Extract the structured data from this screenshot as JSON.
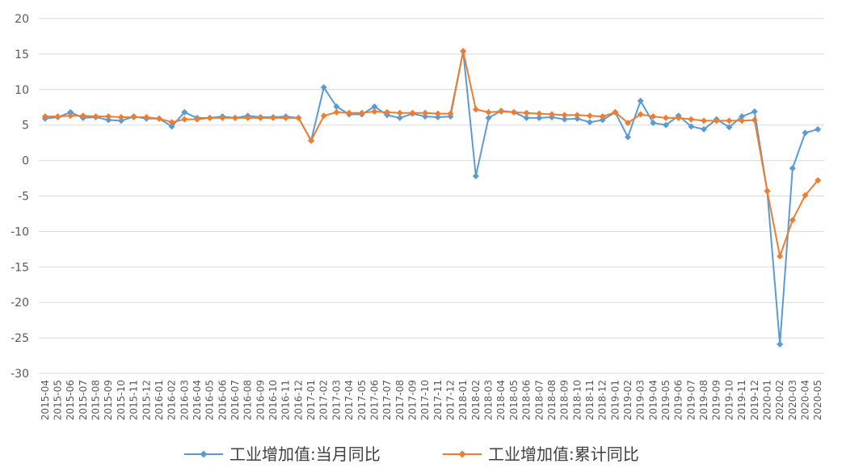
{
  "chart_data": {
    "type": "line",
    "title": "",
    "xlabel": "",
    "ylabel": "",
    "ylim": [
      -30,
      20
    ],
    "yticks": [
      20,
      15,
      10,
      5,
      0,
      -5,
      -10,
      -15,
      -20,
      -25,
      -30
    ],
    "grid": true,
    "legend_position": "bottom",
    "categories": [
      "2015-04",
      "2015-05",
      "2015-06",
      "2015-07",
      "2015-08",
      "2015-09",
      "2015-10",
      "2015-11",
      "2015-12",
      "2016-01",
      "2016-02",
      "2016-03",
      "2016-04",
      "2016-05",
      "2016-06",
      "2016-07",
      "2016-08",
      "2016-09",
      "2016-10",
      "2016-11",
      "2016-12",
      "2017-01",
      "2017-02",
      "2017-03",
      "2017-04",
      "2017-05",
      "2017-06",
      "2017-07",
      "2017-08",
      "2017-09",
      "2017-10",
      "2017-11",
      "2017-12",
      "2018-01",
      "2018-02",
      "2018-03",
      "2018-04",
      "2018-05",
      "2018-06",
      "2018-07",
      "2018-08",
      "2018-09",
      "2018-10",
      "2018-11",
      "2018-12",
      "2019-01",
      "2019-02",
      "2019-03",
      "2019-04",
      "2019-05",
      "2019-06",
      "2019-07",
      "2019-08",
      "2019-09",
      "2019-10",
      "2019-11",
      "2019-12",
      "2020-01",
      "2020-02",
      "2020-03",
      "2020-04",
      "2020-05"
    ],
    "series": [
      {
        "name": "工业增加值:当月同比",
        "color": "#5B9BD5",
        "marker": "diamond",
        "values": [
          5.9,
          6.1,
          6.8,
          6.0,
          6.1,
          5.7,
          5.6,
          6.2,
          5.9,
          5.9,
          4.8,
          6.8,
          6.0,
          6.0,
          6.2,
          6.0,
          6.3,
          6.1,
          6.1,
          6.2,
          6.0,
          2.8,
          10.3,
          7.6,
          6.5,
          6.5,
          7.6,
          6.4,
          6.0,
          6.6,
          6.2,
          6.1,
          6.2,
          15.4,
          -2.2,
          6.0,
          7.0,
          6.8,
          6.0,
          6.0,
          6.1,
          5.8,
          5.9,
          5.4,
          5.7,
          6.8,
          3.3,
          8.4,
          5.3,
          5.0,
          6.3,
          4.8,
          4.4,
          5.8,
          4.7,
          6.2,
          6.9,
          -4.3,
          -25.9,
          -1.1,
          3.9,
          4.4
        ]
      },
      {
        "name": "工业增加值:累计同比",
        "color": "#ED7D31",
        "marker": "diamond",
        "values": [
          6.2,
          6.2,
          6.3,
          6.3,
          6.2,
          6.2,
          6.1,
          6.1,
          6.1,
          5.9,
          5.4,
          5.8,
          5.8,
          6.0,
          6.0,
          6.0,
          6.0,
          6.0,
          6.0,
          6.0,
          6.0,
          2.8,
          6.3,
          6.8,
          6.7,
          6.7,
          6.9,
          6.8,
          6.7,
          6.7,
          6.7,
          6.6,
          6.6,
          15.4,
          7.2,
          6.8,
          6.9,
          6.8,
          6.7,
          6.6,
          6.5,
          6.4,
          6.4,
          6.3,
          6.2,
          6.8,
          5.3,
          6.5,
          6.2,
          6.0,
          6.0,
          5.8,
          5.6,
          5.6,
          5.6,
          5.6,
          5.7,
          -4.3,
          -13.5,
          -8.4,
          -4.9,
          -2.8
        ]
      }
    ]
  }
}
